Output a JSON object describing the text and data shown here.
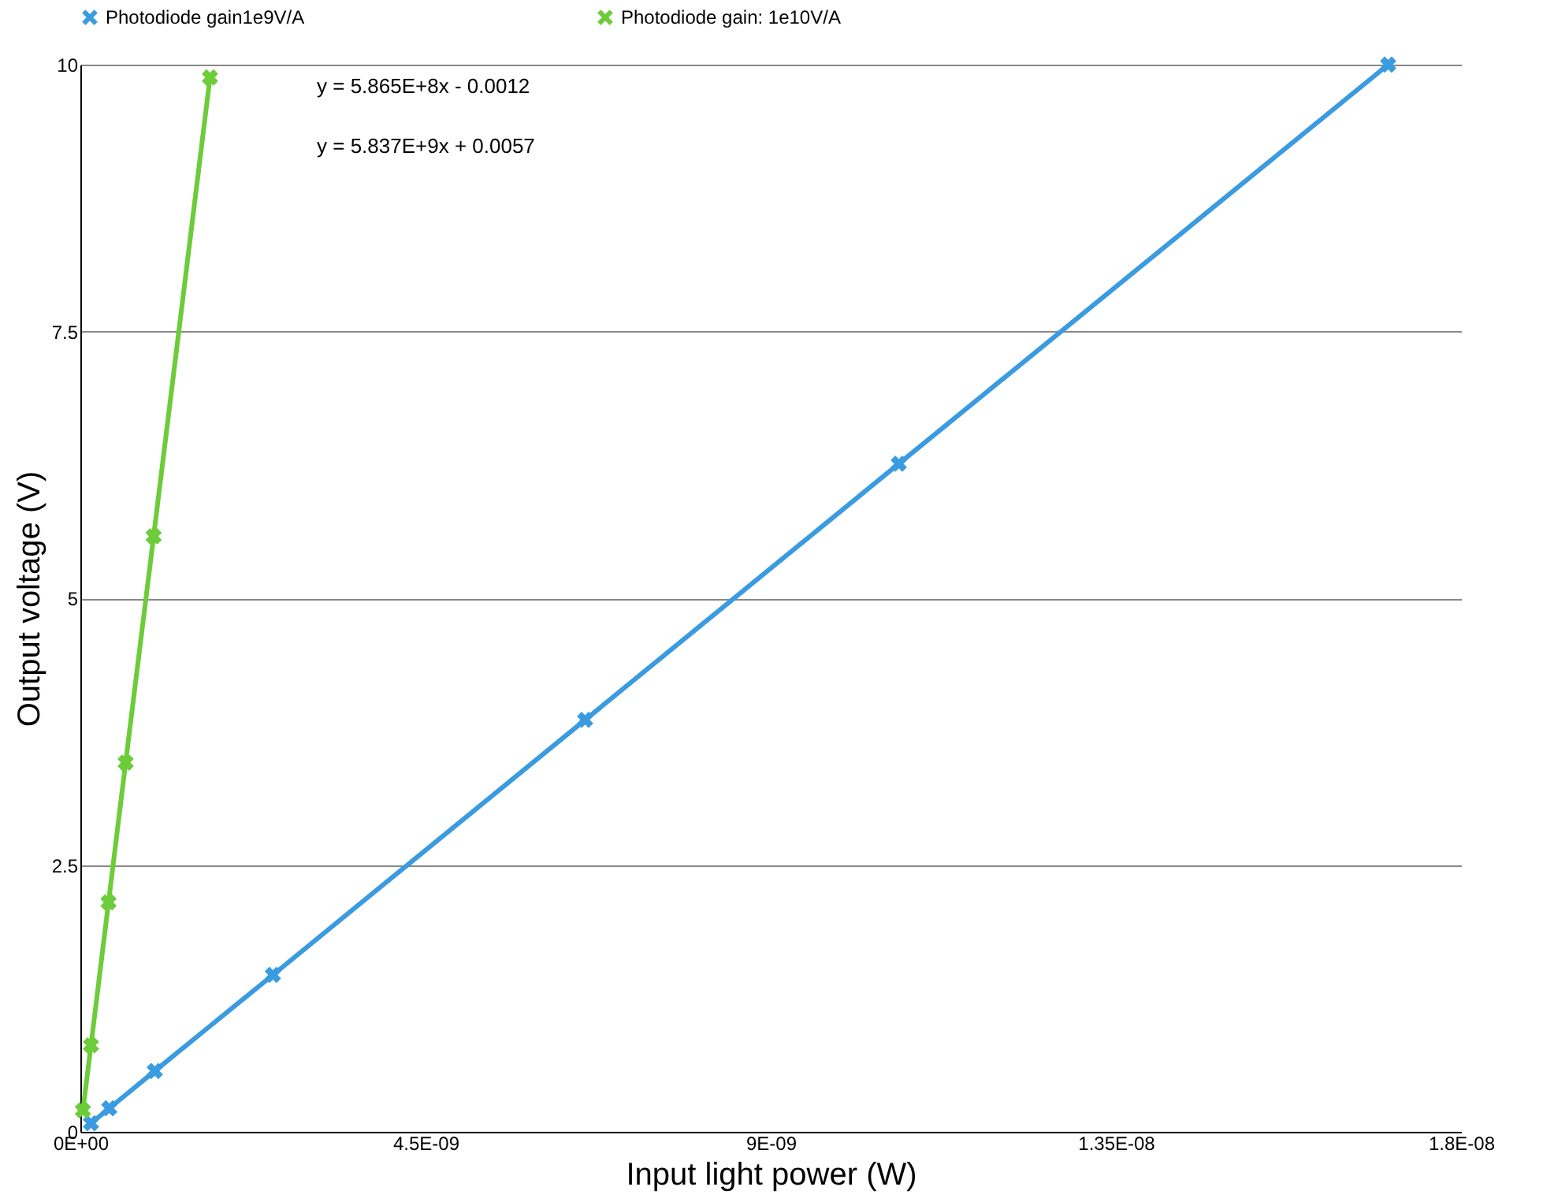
{
  "chart_data": {
    "type": "line",
    "xlabel": "Input light power (W)",
    "ylabel": "Output voltage (V)",
    "series": [
      {
        "name": "Photodiode gain1e9V/A",
        "color": "#3a9be0",
        "x": [
          1.38e-10,
          3.77e-10,
          9.7e-10,
          2.51e-09,
          6.58e-09,
          1.067e-08,
          1.705e-08
        ],
        "values": [
          0.08,
          0.22,
          0.57,
          1.47,
          3.86,
          6.26,
          10.0
        ]
      },
      {
        "name": "Photodiode gain: 1e10V/A",
        "color": "#6ccc3a",
        "x": [
          3.3e-11,
          1.38e-10,
          3.67e-10,
          5.9e-10,
          9.55e-10,
          1.69e-09
        ],
        "values": [
          0.2,
          0.81,
          2.15,
          3.46,
          5.58,
          9.88
        ]
      }
    ],
    "annotations": [
      "y = 5.865E+8x - 0.0012",
      "y = 5.837E+9x + 0.0057"
    ],
    "xlim": [
      0,
      1.8e-08
    ],
    "xticks": [
      {
        "value": 0,
        "label": "0E+00"
      },
      {
        "value": 4.5e-09,
        "label": "4.5E-09"
      },
      {
        "value": 9e-09,
        "label": "9E-09"
      },
      {
        "value": 1.35e-08,
        "label": "1.35E-08"
      },
      {
        "value": 1.8e-08,
        "label": "1.8E-08"
      }
    ],
    "ylim": [
      0,
      10
    ],
    "yticks": [
      0,
      2.5,
      5,
      7.5,
      10
    ],
    "grid": "y",
    "legend": "top",
    "marker": "cross",
    "line_style": "solid"
  }
}
